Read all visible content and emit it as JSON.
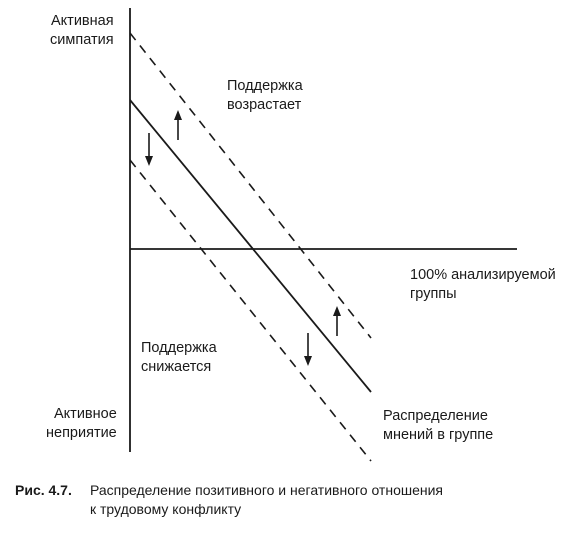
{
  "labels": {
    "y_top_line1": "Активная",
    "y_top_line2": "симпатия",
    "y_bottom_line1": "Активное",
    "y_bottom_line2": "неприятие",
    "support_up_line1": "Поддержка",
    "support_up_line2": "возрастает",
    "support_down_line1": "Поддержка",
    "support_down_line2": "снижается",
    "x_axis_line1": "100% анализируемой",
    "x_axis_line2": "группы",
    "curve_line1": "Распределение",
    "curve_line2": "мнений в группе"
  },
  "caption": {
    "number": "Рис. 4.7.",
    "line1": "Распределение позитивного и негативного отношения",
    "line2": "к трудовому конфликту"
  },
  "colors": {
    "ink": "#1a1a1a",
    "background": "#ffffff"
  },
  "icons": [
    "arrow-up-icon",
    "arrow-down-icon"
  ]
}
